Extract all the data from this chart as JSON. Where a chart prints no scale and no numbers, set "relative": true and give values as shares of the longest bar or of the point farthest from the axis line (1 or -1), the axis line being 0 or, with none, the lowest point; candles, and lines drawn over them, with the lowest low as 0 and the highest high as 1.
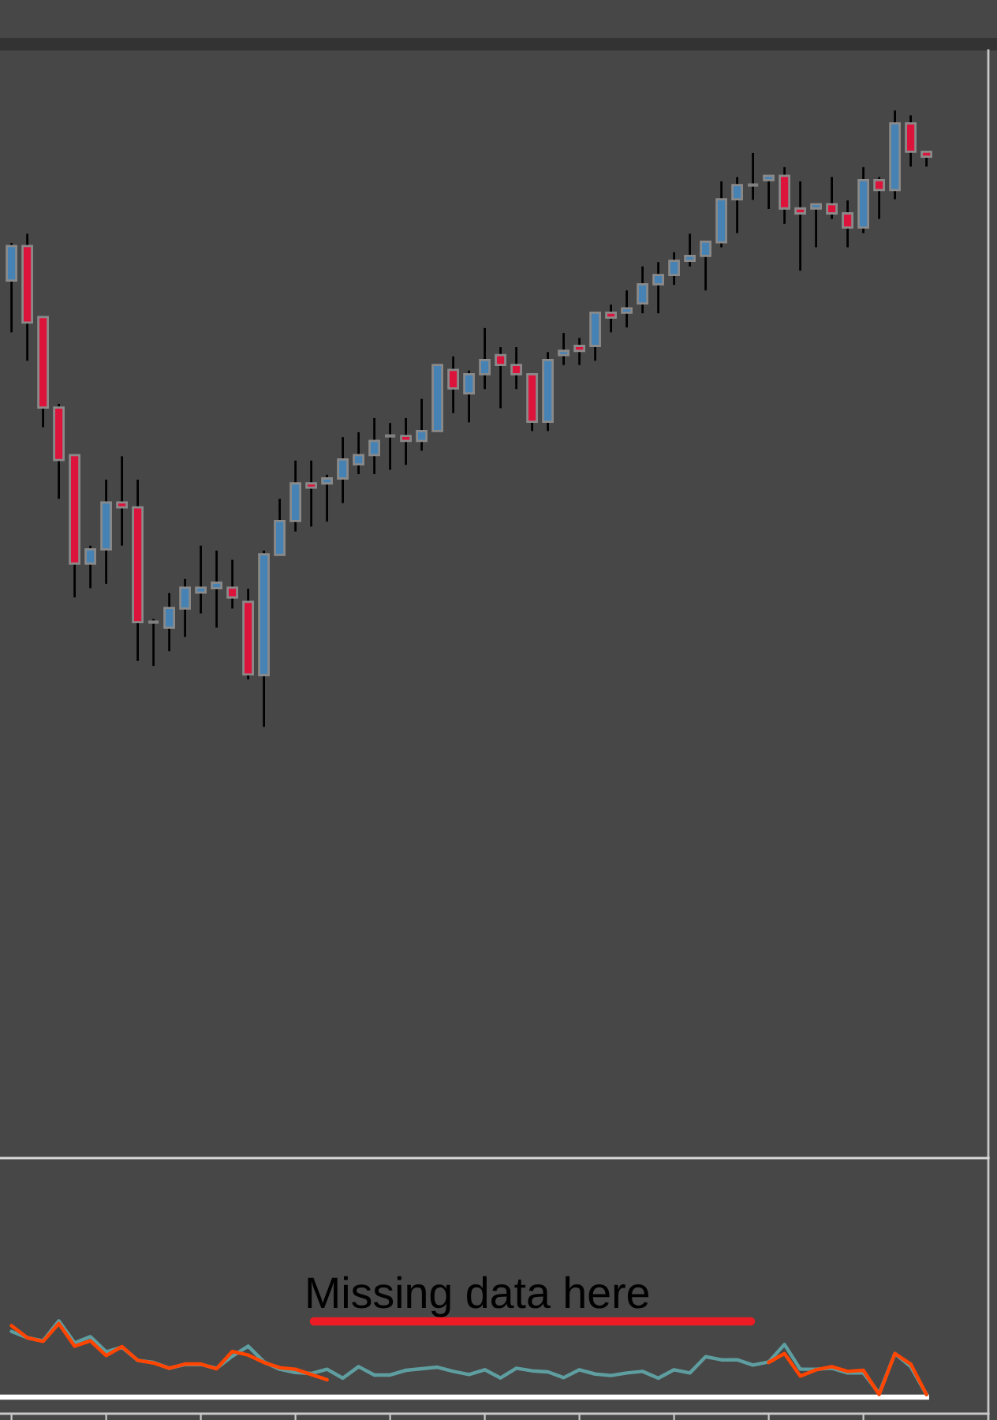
{
  "chart_data": [
    {
      "type": "candlestick",
      "relative": true,
      "categories": [
        null,
        null,
        null,
        null,
        null,
        null,
        null,
        null,
        null,
        null,
        null,
        null,
        null,
        null,
        null,
        null,
        null,
        null,
        null,
        null,
        null,
        null,
        null,
        null,
        null,
        null,
        null,
        null,
        null,
        null,
        null,
        null,
        null,
        null,
        null,
        null,
        null,
        null,
        null,
        null,
        null,
        null,
        null,
        null,
        null,
        null,
        null,
        null,
        null,
        null,
        null,
        null,
        null,
        null,
        null,
        null,
        null,
        null,
        null
      ],
      "ohlc": [
        [
          0.724,
          0.785,
          0.64,
          0.78
        ],
        [
          0.78,
          0.8,
          0.594,
          0.656
        ],
        [
          0.665,
          0.665,
          0.486,
          0.518
        ],
        [
          0.518,
          0.524,
          0.37,
          0.433
        ],
        [
          0.441,
          0.441,
          0.21,
          0.265
        ],
        [
          0.265,
          0.294,
          0.225,
          0.288
        ],
        [
          0.288,
          0.401,
          0.232,
          0.364
        ],
        [
          0.364,
          0.439,
          0.294,
          0.356
        ],
        [
          0.356,
          0.401,
          0.107,
          0.17
        ],
        [
          0.17,
          0.175,
          0.099,
          0.17
        ],
        [
          0.161,
          0.217,
          0.123,
          0.193
        ],
        [
          0.192,
          0.24,
          0.146,
          0.226
        ],
        [
          0.218,
          0.294,
          0.184,
          0.226
        ],
        [
          0.225,
          0.286,
          0.161,
          0.234
        ],
        [
          0.226,
          0.271,
          0.192,
          0.21
        ],
        [
          0.203,
          0.224,
          0.077,
          0.085
        ],
        [
          0.084,
          0.286,
          0,
          0.28
        ],
        [
          0.279,
          0.37,
          0.279,
          0.334
        ],
        [
          0.334,
          0.432,
          0.317,
          0.395
        ],
        [
          0.395,
          0.432,
          0.325,
          0.388
        ],
        [
          0.395,
          0.409,
          0.333,
          0.403
        ],
        [
          0.403,
          0.47,
          0.363,
          0.434
        ],
        [
          0.426,
          0.478,
          0.41,
          0.441
        ],
        [
          0.441,
          0.501,
          0.41,
          0.464
        ],
        [
          0.472,
          0.493,
          0.417,
          0.472
        ],
        [
          0.472,
          0.501,
          0.425,
          0.464
        ],
        [
          0.464,
          0.532,
          0.448,
          0.48
        ],
        [
          0.48,
          0.587,
          0.48,
          0.587
        ],
        [
          0.579,
          0.601,
          0.509,
          0.549
        ],
        [
          0.541,
          0.578,
          0.494,
          0.572
        ],
        [
          0.572,
          0.647,
          0.548,
          0.595
        ],
        [
          0.603,
          0.616,
          0.517,
          0.587
        ],
        [
          0.587,
          0.616,
          0.548,
          0.572
        ],
        [
          0.572,
          0.572,
          0.48,
          0.495
        ],
        [
          0.495,
          0.608,
          0.48,
          0.595
        ],
        [
          0.603,
          0.639,
          0.587,
          0.61
        ],
        [
          0.618,
          0.631,
          0.587,
          0.61
        ],
        [
          0.618,
          0.672,
          0.594,
          0.672
        ],
        [
          0.672,
          0.685,
          0.64,
          0.664
        ],
        [
          0.672,
          0.708,
          0.648,
          0.679
        ],
        [
          0.687,
          0.747,
          0.671,
          0.718
        ],
        [
          0.718,
          0.754,
          0.671,
          0.733
        ],
        [
          0.733,
          0.77,
          0.717,
          0.756
        ],
        [
          0.756,
          0.8,
          0.747,
          0.764
        ],
        [
          0.764,
          0.787,
          0.708,
          0.787
        ],
        [
          0.786,
          0.885,
          0.778,
          0.856
        ],
        [
          0.856,
          0.892,
          0.801,
          0.879
        ],
        [
          0.879,
          0.931,
          0.855,
          0.879
        ],
        [
          0.887,
          0.894,
          0.84,
          0.894
        ],
        [
          0.894,
          0.908,
          0.816,
          0.841
        ],
        [
          0.841,
          0.885,
          0.74,
          0.833
        ],
        [
          0.841,
          0.848,
          0.778,
          0.848
        ],
        [
          0.848,
          0.892,
          0.824,
          0.833
        ],
        [
          0.833,
          0.854,
          0.778,
          0.81
        ],
        [
          0.81,
          0.908,
          0.801,
          0.887
        ],
        [
          0.887,
          0.892,
          0.824,
          0.871
        ],
        [
          0.871,
          1,
          0.856,
          0.979
        ],
        [
          0.979,
          0.992,
          0.909,
          0.933
        ],
        [
          0.933,
          0.933,
          0.909,
          0.925
        ]
      ],
      "colors": [
        "#4682b4",
        "#dc143c",
        "#dc143c",
        "#dc143c",
        "#dc143c",
        "#4682b4",
        "#4682b4",
        "#dc143c",
        "#dc143c",
        "#808080",
        "#4682b4",
        "#4682b4",
        "#4682b4",
        "#4682b4",
        "#dc143c",
        "#dc143c",
        "#4682b4",
        "#4682b4",
        "#4682b4",
        "#dc143c",
        "#4682b4",
        "#4682b4",
        "#4682b4",
        "#4682b4",
        "#808080",
        "#dc143c",
        "#4682b4",
        "#4682b4",
        "#dc143c",
        "#4682b4",
        "#4682b4",
        "#dc143c",
        "#dc143c",
        "#dc143c",
        "#4682b4",
        "#4682b4",
        "#dc143c",
        "#4682b4",
        "#dc143c",
        "#4682b4",
        "#4682b4",
        "#4682b4",
        "#4682b4",
        "#4682b4",
        "#4682b4",
        "#4682b4",
        "#4682b4",
        "#808080",
        "#4682b4",
        "#dc143c",
        "#dc143c",
        "#4682b4",
        "#dc143c",
        "#dc143c",
        "#4682b4",
        "#dc143c",
        "#4682b4",
        "#dc143c",
        "#dc143c"
      ]
    },
    {
      "type": "line",
      "relative": true,
      "categories": [
        null,
        null,
        null,
        null,
        null,
        null,
        null,
        null,
        null,
        null,
        null,
        null,
        null,
        null,
        null,
        null,
        null,
        null,
        null,
        null,
        null,
        null,
        null,
        null,
        null,
        null,
        null,
        null,
        null,
        null,
        null,
        null,
        null,
        null,
        null,
        null,
        null,
        null,
        null,
        null,
        null,
        null,
        null,
        null,
        null,
        null,
        null,
        null,
        null,
        null,
        null,
        null,
        null,
        null,
        null,
        null,
        null,
        null,
        null
      ],
      "series": [
        {
          "color": "#5f9ea0",
          "values": [
            0.862,
            0.779,
            0.738,
            1,
            0.71,
            0.793,
            0.593,
            0.655,
            0.483,
            0.455,
            0.379,
            0.428,
            0.428,
            0.379,
            0.538,
            0.669,
            0.462,
            0.366,
            0.324,
            0.31,
            0.366,
            0.248,
            0.4,
            0.29,
            0.29,
            0.352,
            0.372,
            0.393,
            0.338,
            0.297,
            0.359,
            0.252,
            0.379,
            0.345,
            0.331,
            0.255,
            0.359,
            0.303,
            0.283,
            0.317,
            0.338,
            0.248,
            0.359,
            0.317,
            0.531,
            0.49,
            0.49,
            0.421,
            0.462,
            0.69,
            0.366,
            0.366,
            0.379,
            0.317,
            0.317,
            0.048,
            0.572,
            0.4,
            0.034
          ]
        },
        {
          "color": "#ff4500",
          "values": [
            0.938,
            0.779,
            0.731,
            0.966,
            0.669,
            0.738,
            0.545,
            0.662,
            0.483,
            0.448,
            0.379,
            0.434,
            0.434,
            0.372,
            0.6,
            0.552,
            0.455,
            0.386,
            0.366,
            0.297,
            0.228,
            null,
            null,
            null,
            null,
            null,
            null,
            null,
            null,
            null,
            null,
            null,
            null,
            null,
            null,
            null,
            null,
            null,
            null,
            null,
            null,
            null,
            null,
            null,
            null,
            null,
            null,
            null,
            0.455,
            0.572,
            0.276,
            0.359,
            0.4,
            0.338,
            0.352,
            0.034,
            0.572,
            0.434,
            0.034
          ]
        }
      ],
      "annotations": [
        "Missing data here"
      ]
    }
  ]
}
